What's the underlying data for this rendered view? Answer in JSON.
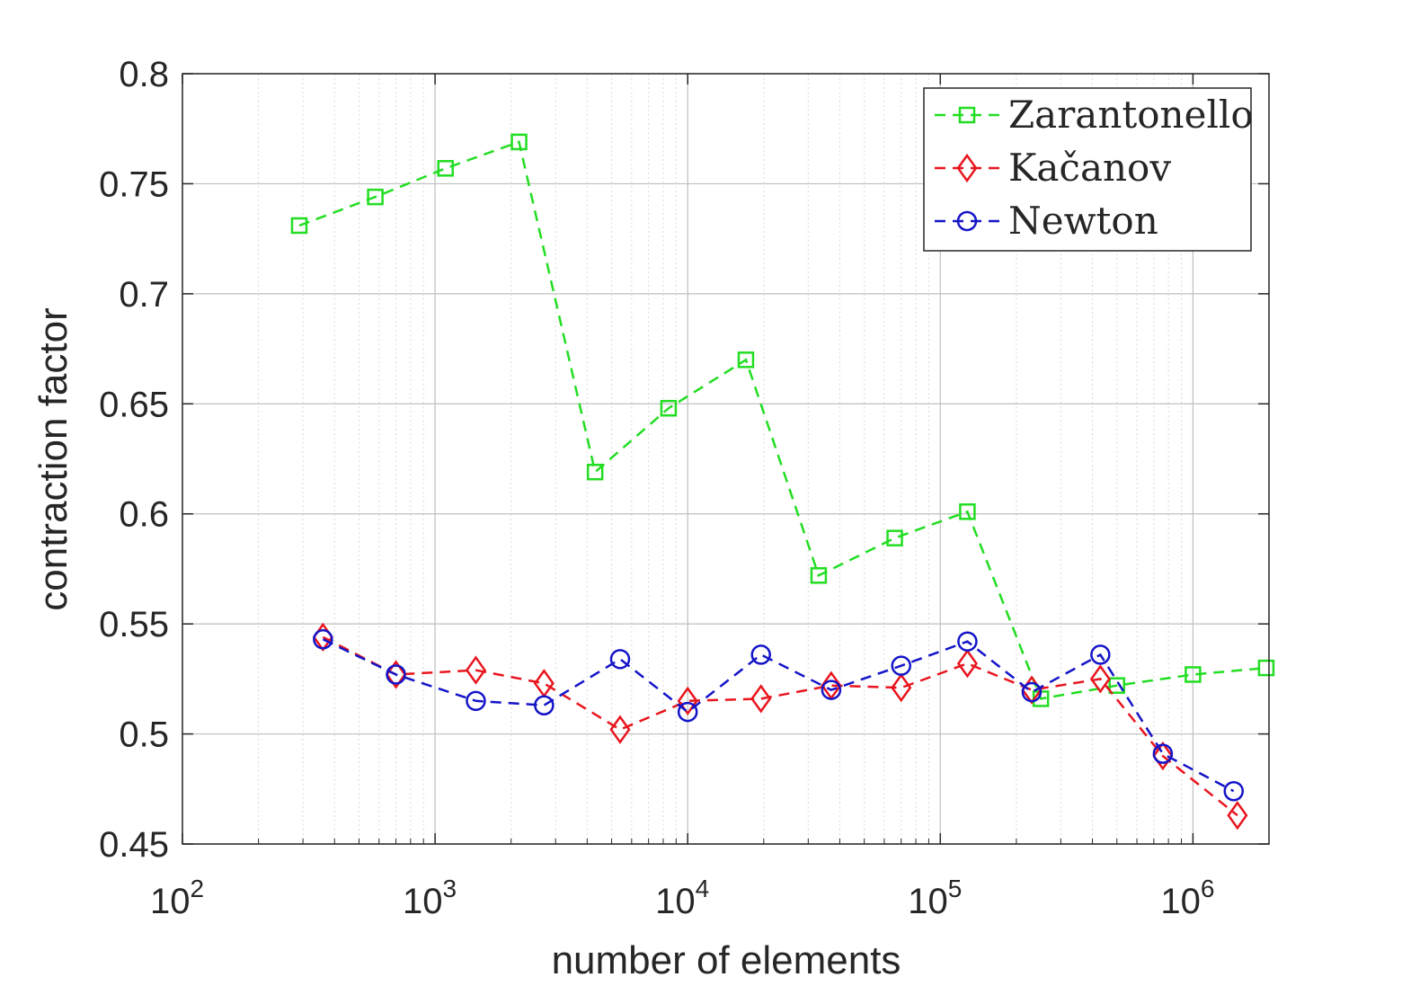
{
  "chart_data": {
    "type": "line",
    "xlabel": "number of elements",
    "ylabel": "contraction factor",
    "x_scale": "log",
    "xlim": [
      100,
      2000000
    ],
    "ylim": [
      0.45,
      0.8
    ],
    "grid": true,
    "legend_position": "top-right",
    "x_ticks": [
      {
        "value": 100,
        "base": "10",
        "exp": "2"
      },
      {
        "value": 1000,
        "base": "10",
        "exp": "3"
      },
      {
        "value": 10000,
        "base": "10",
        "exp": "4"
      },
      {
        "value": 100000,
        "base": "10",
        "exp": "5"
      },
      {
        "value": 1000000,
        "base": "10",
        "exp": "6"
      }
    ],
    "y_ticks": [
      {
        "value": 0.45,
        "label": "0.45"
      },
      {
        "value": 0.5,
        "label": "0.5"
      },
      {
        "value": 0.55,
        "label": "0.55"
      },
      {
        "value": 0.6,
        "label": "0.6"
      },
      {
        "value": 0.65,
        "label": "0.65"
      },
      {
        "value": 0.7,
        "label": "0.7"
      },
      {
        "value": 0.75,
        "label": "0.75"
      },
      {
        "value": 0.8,
        "label": "0.8"
      }
    ],
    "series": [
      {
        "name": "Zarantonello",
        "color": "#22dd22",
        "marker": "square",
        "x": [
          290,
          580,
          1100,
          2150,
          4300,
          8400,
          17000,
          33000,
          66000,
          128000,
          250000,
          500000,
          1000000,
          1950000
        ],
        "y": [
          0.731,
          0.744,
          0.757,
          0.769,
          0.619,
          0.648,
          0.67,
          0.572,
          0.589,
          0.601,
          0.516,
          0.522,
          0.527,
          0.53
        ]
      },
      {
        "name": "Kačanov",
        "color": "#e8151e",
        "marker": "diamond",
        "x": [
          360,
          700,
          1450,
          2700,
          5400,
          10000,
          19500,
          37000,
          70000,
          128000,
          230000,
          430000,
          760000,
          1500000
        ],
        "y": [
          0.544,
          0.527,
          0.529,
          0.523,
          0.502,
          0.515,
          0.516,
          0.522,
          0.521,
          0.532,
          0.52,
          0.525,
          0.49,
          0.463
        ]
      },
      {
        "name": "Newton",
        "color": "#1414c8",
        "marker": "circle",
        "x": [
          360,
          700,
          1450,
          2700,
          5400,
          10000,
          19500,
          37000,
          70000,
          128000,
          230000,
          430000,
          760000,
          1450000
        ],
        "y": [
          0.543,
          0.527,
          0.515,
          0.513,
          0.534,
          0.51,
          0.536,
          0.52,
          0.531,
          0.542,
          0.519,
          0.536,
          0.491,
          0.474
        ]
      }
    ]
  }
}
